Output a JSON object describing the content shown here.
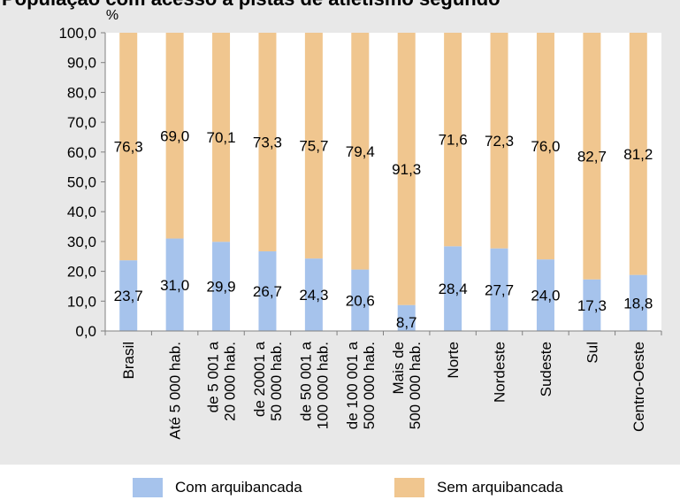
{
  "chart_data": {
    "type": "bar",
    "stacked": true,
    "title": "População com acesso a pistas de atletismo segundo",
    "ylabel": "%",
    "ylim": [
      0,
      100
    ],
    "yticks": [
      "0,0",
      "10,0",
      "20,0",
      "30,0",
      "40,0",
      "50,0",
      "60,0",
      "70,0",
      "80,0",
      "90,0",
      "100,0"
    ],
    "ytick_values": [
      0,
      10,
      20,
      30,
      40,
      50,
      60,
      70,
      80,
      90,
      100
    ],
    "categories": [
      "Brasil",
      "Até 5 000 hab.",
      "de 5 001 a\n20 000 hab.",
      "de 20001 a\n50 000 hab.",
      "de 50 001 a\n100 000 hab.",
      "de 100 001 a\n500 000 hab.",
      "Mais de\n500 000 hab.",
      "Norte",
      "Nordeste",
      "Sudeste",
      "Sul",
      "Centro-Oeste"
    ],
    "series": [
      {
        "name": "Com arquibancada",
        "color": "#a6c3ec",
        "values": [
          23.7,
          31.0,
          29.9,
          26.7,
          24.3,
          20.6,
          8.7,
          28.4,
          27.7,
          24.0,
          17.3,
          18.8
        ],
        "labels": [
          "23,7",
          "31,0",
          "29,9",
          "26,7",
          "24,3",
          "20,6",
          "8,7",
          "28,4",
          "27,7",
          "24,0",
          "17,3",
          "18,8"
        ]
      },
      {
        "name": "Sem arquibancada",
        "color": "#f0c68f",
        "values": [
          76.3,
          69.0,
          70.1,
          73.3,
          75.7,
          79.4,
          91.3,
          71.6,
          72.3,
          76.0,
          82.7,
          81.2
        ],
        "labels": [
          "76,3",
          "69,0",
          "70,1",
          "73,3",
          "75,7",
          "79,4",
          "91,3",
          "71,6",
          "72,3",
          "76,0",
          "82,7",
          "81,2"
        ]
      }
    ],
    "grid": false,
    "legend": "bottom"
  }
}
